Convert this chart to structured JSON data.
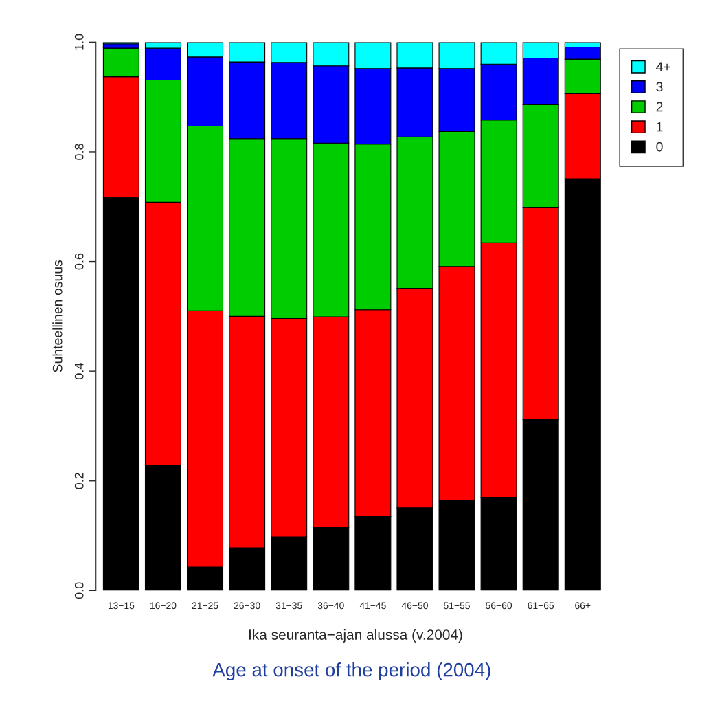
{
  "chart_data": {
    "type": "bar",
    "stacked": true,
    "categories": [
      "13−15",
      "16−20",
      "21−25",
      "26−30",
      "31−35",
      "36−40",
      "41−45",
      "46−50",
      "51−55",
      "56−60",
      "61−65",
      "66+"
    ],
    "series": [
      {
        "name": "0",
        "color": "#000000",
        "values": [
          0.717,
          0.228,
          0.043,
          0.078,
          0.098,
          0.115,
          0.135,
          0.151,
          0.165,
          0.17,
          0.312,
          0.751
        ]
      },
      {
        "name": "1",
        "color": "#ff0000",
        "values": [
          0.22,
          0.48,
          0.467,
          0.422,
          0.398,
          0.384,
          0.377,
          0.4,
          0.426,
          0.464,
          0.387,
          0.155
        ]
      },
      {
        "name": "2",
        "color": "#00cd00",
        "values": [
          0.052,
          0.223,
          0.337,
          0.324,
          0.328,
          0.317,
          0.302,
          0.276,
          0.246,
          0.224,
          0.187,
          0.063
        ]
      },
      {
        "name": "3",
        "color": "#0000ff",
        "values": [
          0.008,
          0.058,
          0.126,
          0.14,
          0.139,
          0.141,
          0.138,
          0.126,
          0.115,
          0.102,
          0.085,
          0.022
        ]
      },
      {
        "name": "4+",
        "color": "#00ffff",
        "values": [
          0.003,
          0.011,
          0.027,
          0.036,
          0.037,
          0.043,
          0.048,
          0.047,
          0.048,
          0.04,
          0.029,
          0.009
        ]
      }
    ],
    "ylim": [
      0,
      1
    ],
    "yticks": [
      {
        "value": 0,
        "label": "0.0"
      },
      {
        "value": 0.2,
        "label": "0.2"
      },
      {
        "value": 0.4,
        "label": "0.4"
      },
      {
        "value": 0.6,
        "label": "0.6"
      },
      {
        "value": 0.8,
        "label": "0.8"
      },
      {
        "value": 1,
        "label": "1.0"
      }
    ],
    "ylabel": "Suhteellinen osuus",
    "xlabel": "Ika seuranta−ajan alussa (v.2004)",
    "annotations": [
      "Age at onset of the period (2004)"
    ],
    "legend": "top right",
    "grid": false
  }
}
